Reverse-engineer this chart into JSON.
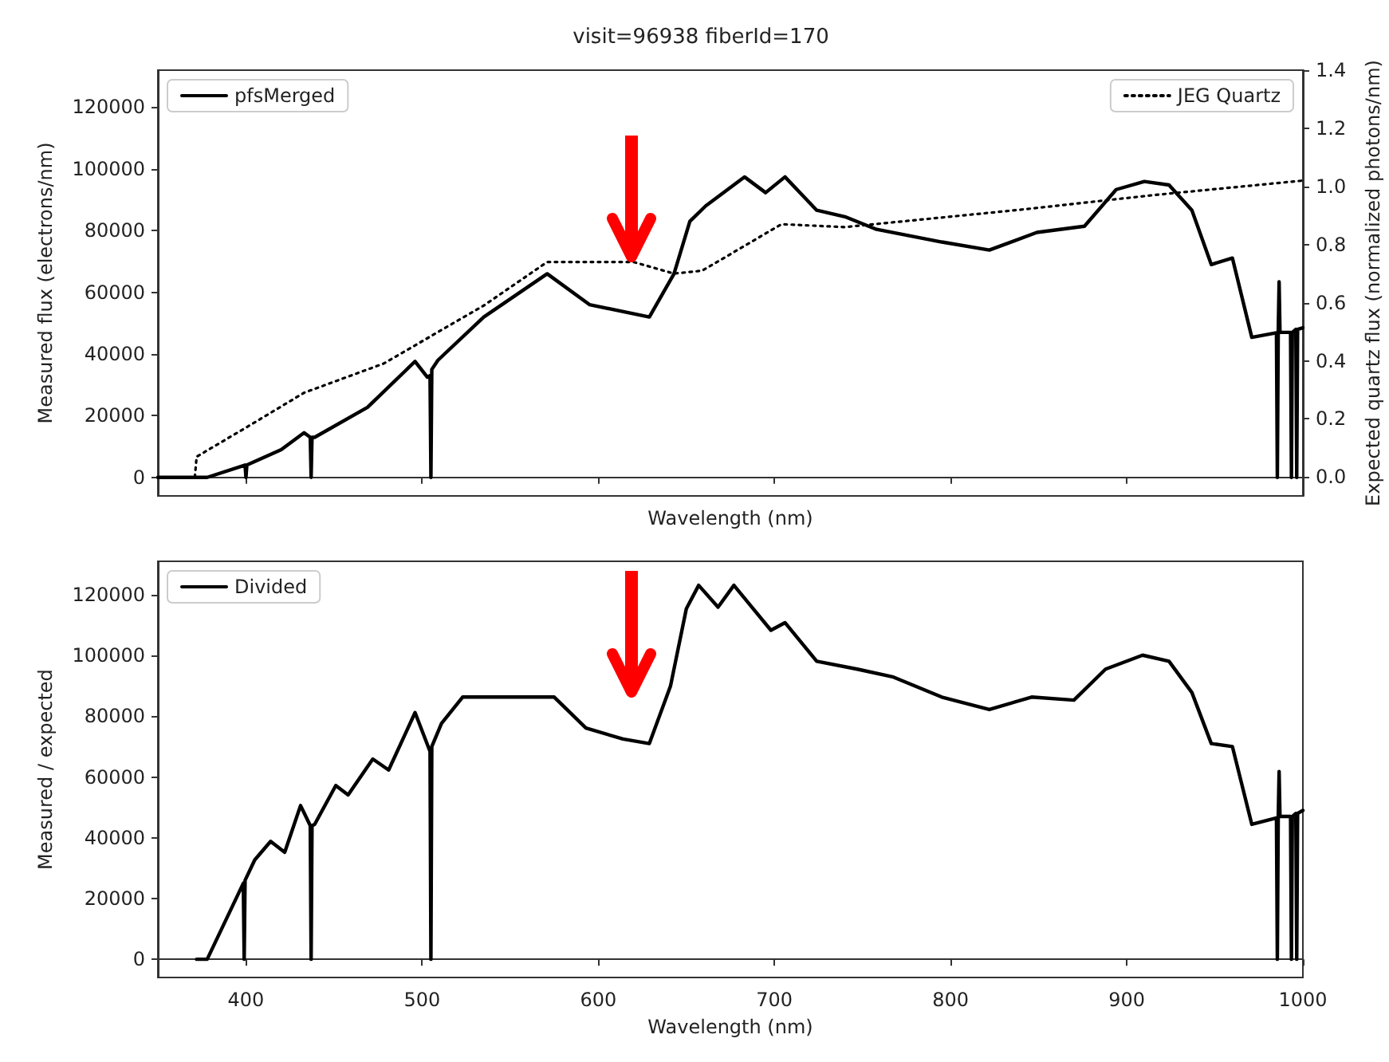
{
  "chart_data": [
    {
      "type": "line",
      "title": "visit=96938 fiberId=170",
      "xlabel": "Wavelength (nm)",
      "ylabel": "Measured flux (electrons/nm)",
      "y2label": "Expected quartz flux (normalized photons/nm)",
      "xlim": [
        350,
        1000
      ],
      "xticks": [
        400,
        500,
        600,
        700,
        800,
        900,
        1000
      ],
      "ylim": [
        -6000,
        132000
      ],
      "yticks": [
        0,
        20000,
        40000,
        60000,
        80000,
        100000,
        120000
      ],
      "y2lim": [
        -0.065,
        1.4
      ],
      "y2ticks": [
        {
          "value": 0,
          "label": "0.0"
        },
        {
          "value": 0.2,
          "label": "0.2"
        },
        {
          "value": 0.4,
          "label": "0.4"
        },
        {
          "value": 0.6,
          "label": "0.6"
        },
        {
          "value": 0.8,
          "label": "0.8"
        },
        {
          "value": 1,
          "label": "1.0"
        },
        {
          "value": 1.2,
          "label": "1.2"
        },
        {
          "value": 1.4,
          "label": "1.4"
        }
      ],
      "tick_labels": "y",
      "legend": "top left",
      "marker": "none",
      "series": [
        {
          "name": "pfsMerged",
          "color": "#000000",
          "line_style": "solid",
          "x": [
            350,
            378,
            399.5,
            400,
            400.5,
            420,
            433,
            436.5,
            437,
            437.5,
            439,
            469,
            496,
            503,
            504.5,
            505,
            505.5,
            509,
            535,
            571,
            595,
            629,
            643,
            652,
            661,
            683,
            695,
            706,
            724,
            740,
            758,
            795,
            822,
            849,
            876,
            894,
            910,
            924,
            937,
            948,
            960,
            971,
            985,
            985.5,
            986,
            986.5,
            987,
            987.5,
            993,
            993.5,
            994,
            996,
            996.5,
            997,
            1000
          ],
          "values": [
            0,
            0,
            4000,
            0,
            4000,
            9000,
            14500,
            13000,
            0,
            13000,
            13000,
            22700,
            37600,
            32500,
            33000,
            0,
            35000,
            38000,
            52000,
            66000,
            56000,
            52000,
            66000,
            83000,
            88000,
            97400,
            92300,
            97400,
            86600,
            84500,
            80400,
            76300,
            73700,
            79400,
            81400,
            93300,
            95900,
            94800,
            86600,
            69000,
            71100,
            45400,
            46900,
            0,
            46900,
            63400,
            47000,
            47000,
            47000,
            0,
            47000,
            48000,
            0,
            48000,
            48500
          ]
        },
        {
          "name": "JEG Quartz",
          "color": "#000000",
          "line_style": "dotted",
          "axis": "y2",
          "x": [
            371,
            372,
            400,
            433,
            478,
            535,
            571,
            620,
            643,
            659,
            704,
            740,
            840,
            915,
            1000
          ],
          "values": [
            0,
            0.07,
            0.17,
            0.29,
            0.39,
            0.59,
            0.74,
            0.74,
            0.7,
            0.71,
            0.87,
            0.86,
            0.92,
            0.97,
            1.02
          ]
        }
      ]
    },
    {
      "type": "line",
      "xlabel": "Wavelength (nm)",
      "ylabel": "Measured / expected",
      "xlim": [
        350,
        1000
      ],
      "xticks": [
        400,
        500,
        600,
        700,
        800,
        900,
        1000
      ],
      "ylim": [
        -6000,
        131000
      ],
      "yticks": [
        0,
        20000,
        40000,
        60000,
        80000,
        100000,
        120000
      ],
      "legend": "top left",
      "marker": "none",
      "series": [
        {
          "name": "Divided",
          "color": "#000000",
          "line_style": "solid",
          "x": [
            372,
            378,
            398.5,
            399,
            399.5,
            405,
            414,
            422,
            431,
            436.5,
            437,
            437.5,
            439,
            451,
            458,
            472,
            481,
            496,
            504.5,
            505,
            505.5,
            511,
            523,
            553,
            575,
            593,
            614,
            629,
            641,
            650,
            657,
            668,
            677,
            698,
            706,
            724,
            747,
            767,
            795,
            822,
            846,
            870,
            888,
            909,
            924,
            937,
            948,
            960,
            971,
            985,
            985.5,
            986,
            986.5,
            987,
            987.5,
            993,
            993.5,
            994,
            996,
            996.5,
            997,
            1000
          ],
          "values": [
            0,
            0,
            25000,
            0,
            26000,
            32700,
            38800,
            35200,
            50600,
            44000,
            0,
            44000,
            44400,
            57200,
            54100,
            65900,
            62300,
            81200,
            68400,
            0,
            70000,
            77600,
            86300,
            86300,
            86300,
            76100,
            72500,
            71000,
            89900,
            115400,
            123100,
            115900,
            123100,
            108300,
            110800,
            98100,
            95500,
            93000,
            86300,
            82200,
            86300,
            85300,
            95500,
            100100,
            98100,
            87800,
            71000,
            70000,
            44400,
            46500,
            0,
            46500,
            61800,
            47000,
            47000,
            47000,
            0,
            47000,
            48000,
            0,
            48000,
            49000
          ]
        }
      ]
    }
  ]
}
